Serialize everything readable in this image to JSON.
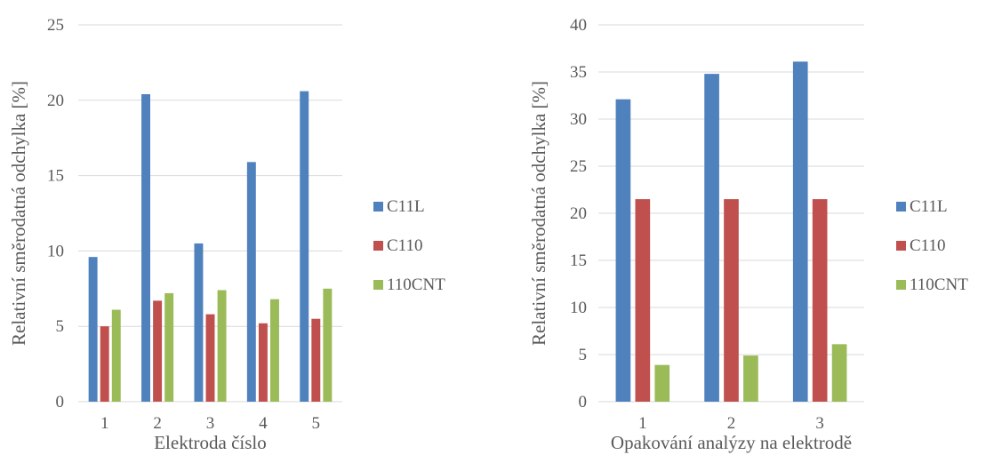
{
  "chart_data": [
    {
      "type": "bar",
      "title": "",
      "xlabel": "Elektroda číslo",
      "ylabel": "Relativní směrodatná odchylka [%]",
      "ylim": [
        0,
        25
      ],
      "yticks": [
        0,
        5,
        10,
        15,
        20,
        25
      ],
      "grid": true,
      "legend_position": "right",
      "categories": [
        "1",
        "2",
        "3",
        "4",
        "5"
      ],
      "series": [
        {
          "name": "C11L",
          "color": "#4f81bd",
          "values": [
            9.6,
            20.4,
            10.5,
            15.9,
            20.6
          ]
        },
        {
          "name": "C110",
          "color": "#c0504d",
          "values": [
            5.0,
            6.7,
            5.8,
            5.2,
            5.5
          ]
        },
        {
          "name": "110CNT",
          "color": "#9bbb59",
          "values": [
            6.1,
            7.2,
            7.4,
            6.8,
            7.5
          ]
        }
      ]
    },
    {
      "type": "bar",
      "title": "",
      "xlabel": "Opakování analýzy na elektrodě",
      "ylabel": "Relativní směrodatná odchylka [%]",
      "ylim": [
        0,
        40
      ],
      "yticks": [
        0,
        5,
        10,
        15,
        20,
        25,
        30,
        35,
        40
      ],
      "grid": true,
      "legend_position": "right",
      "categories": [
        "1",
        "2",
        "3"
      ],
      "series": [
        {
          "name": "C11L",
          "color": "#4f81bd",
          "values": [
            32.1,
            34.8,
            36.1
          ]
        },
        {
          "name": "C110",
          "color": "#c0504d",
          "values": [
            21.5,
            21.5,
            21.5
          ]
        },
        {
          "name": "110CNT",
          "color": "#9bbb59",
          "values": [
            3.9,
            4.9,
            6.1
          ]
        }
      ]
    }
  ]
}
